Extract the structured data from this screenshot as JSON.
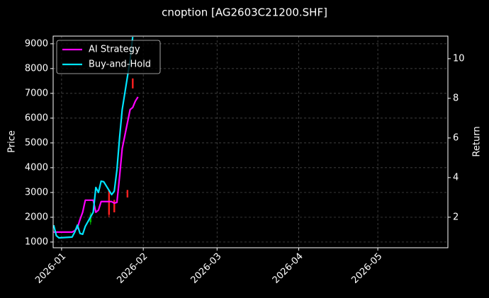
{
  "chart_data": {
    "type": "candlestick",
    "title": "cnoption [AG2603C21200.SHF]",
    "y_label": "Price",
    "y2_label": "Return",
    "xlim": [
      -3.2,
      146.6
    ],
    "xticks": [
      {
        "value": 0,
        "label": "2026-01"
      },
      {
        "value": 31,
        "label": "2026-02"
      },
      {
        "value": 59,
        "label": "2026-03"
      },
      {
        "value": 90,
        "label": "2026-04"
      },
      {
        "value": 120,
        "label": "2026-05"
      }
    ],
    "ylim": [
      770,
      9310
    ],
    "yticks": [
      1000,
      2000,
      3000,
      4000,
      5000,
      6000,
      7000,
      8000,
      9000
    ],
    "y2lim": [
      0.46,
      11.14
    ],
    "y2ticks": [
      2,
      4,
      6,
      8,
      10
    ],
    "grid": true,
    "legend": "upper left",
    "candles": {
      "x": [
        11,
        18,
        20,
        25,
        27
      ],
      "open": [
        1800,
        3100,
        2700,
        3100,
        7600
      ],
      "high": [
        2200,
        3100,
        2700,
        3100,
        7600
      ],
      "low": [
        1700,
        2000,
        2200,
        2800,
        7200
      ],
      "close": [
        2100,
        2100,
        2200,
        2800,
        7200
      ],
      "up_color": "#00c000",
      "down_color": "#ff2020"
    },
    "x": [
      -3,
      -2,
      -1,
      4,
      5,
      6,
      7,
      8,
      9,
      12,
      13,
      14,
      15,
      16,
      19,
      20,
      21,
      22,
      23,
      26,
      27,
      28,
      29
    ],
    "series": [
      {
        "name": "AI Strategy",
        "color": "#ff00ff",
        "axis": "y2",
        "values": [
          1.25,
          1.25,
          1.25,
          1.25,
          1.32,
          1.46,
          1.89,
          2.25,
          2.86,
          2.86,
          2.25,
          2.36,
          2.79,
          2.79,
          2.79,
          2.71,
          2.75,
          4.04,
          5.46,
          7.43,
          7.54,
          7.86,
          8.07
        ]
      },
      {
        "name": "Buy-and-Hold",
        "color": "#00e5ff",
        "axis": "y2",
        "values": [
          1.6,
          1.07,
          0.96,
          1.0,
          1.25,
          1.6,
          1.18,
          1.14,
          1.54,
          2.25,
          3.5,
          3.25,
          3.82,
          3.79,
          3.14,
          3.32,
          4.39,
          6.0,
          7.43,
          9.93,
          11.1,
          null,
          null
        ]
      }
    ]
  }
}
